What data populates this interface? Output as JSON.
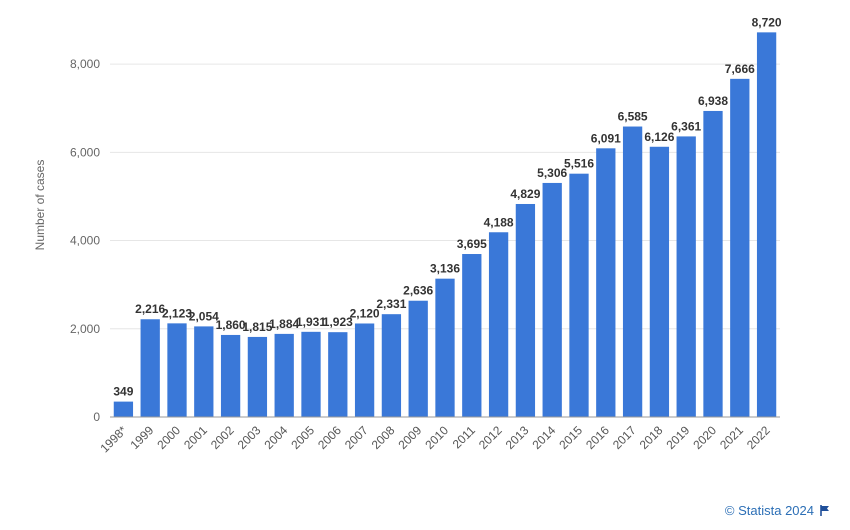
{
  "chart_data": {
    "type": "bar",
    "categories": [
      "1998*",
      "1999",
      "2000",
      "2001",
      "2002",
      "2003",
      "2004",
      "2005",
      "2006",
      "2007",
      "2008",
      "2009",
      "2010",
      "2011",
      "2012",
      "2013",
      "2014",
      "2015",
      "2016",
      "2017",
      "2018",
      "2019",
      "2020",
      "2021",
      "2022"
    ],
    "values": [
      349,
      2216,
      2123,
      2054,
      1860,
      1815,
      1884,
      1931,
      1923,
      2120,
      2331,
      2636,
      3136,
      3695,
      4188,
      4829,
      5306,
      5516,
      6091,
      6585,
      6126,
      6361,
      6938,
      7666,
      8720
    ],
    "value_labels": [
      "349",
      "2,216",
      "2,123",
      "2,054",
      "1,860",
      "1,815",
      "1,884",
      "1,931",
      "1,923",
      "2,120",
      "2,331",
      "2,636",
      "3,136",
      "3,695",
      "4,188",
      "4,829",
      "5,306",
      "5,516",
      "6,091",
      "6,585",
      "6,126",
      "6,361",
      "6,938",
      "7,666",
      "8,720"
    ],
    "ylabel": "Number of cases",
    "xlabel": "",
    "ylim": [
      0,
      9000
    ],
    "yticks": [
      0,
      2000,
      4000,
      6000,
      8000
    ],
    "ytick_labels": [
      "0",
      "2,000",
      "4,000",
      "6,000",
      "8,000"
    ],
    "grid": true,
    "bar_color": "#3a78d8"
  },
  "credit": {
    "text": "© Statista 2024",
    "icon": "flag-icon"
  }
}
